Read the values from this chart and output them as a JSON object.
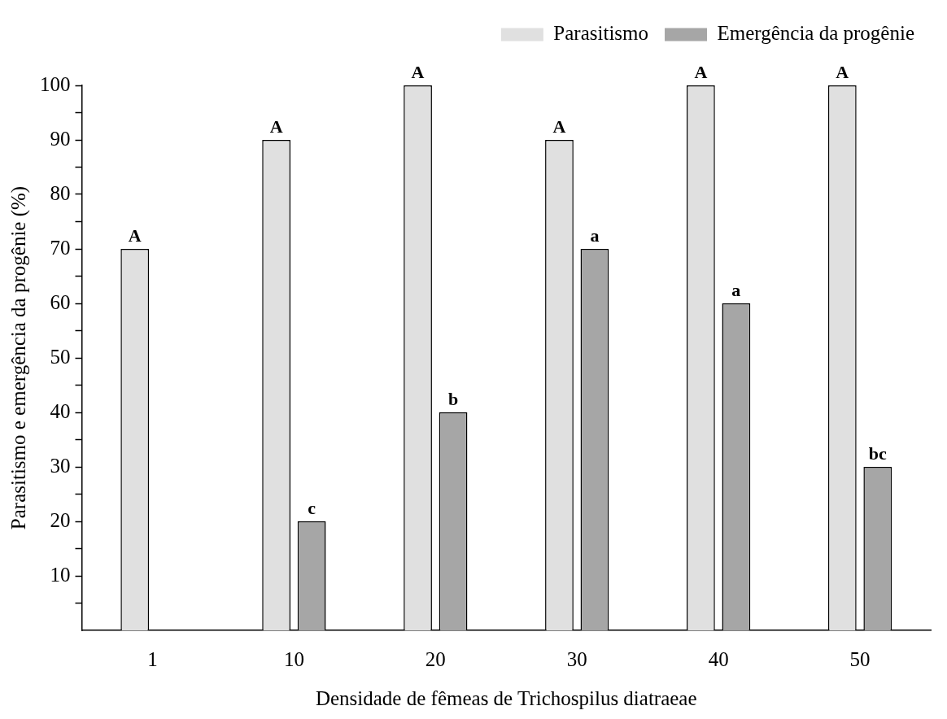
{
  "chart_data": {
    "type": "bar",
    "xlabel": "Densidade de fêmeas de Trichospilus diatraeae",
    "ylabel": "Parasitismo e emergência da progênie (%)",
    "categories": [
      "1",
      "10",
      "20",
      "30",
      "40",
      "50"
    ],
    "series": [
      {
        "name": "Parasitismo",
        "color": "#e0e0e0",
        "values": [
          70,
          90,
          100,
          90,
          100,
          100
        ],
        "value_labels": [
          "A",
          "A",
          "A",
          "A",
          "A",
          "A"
        ]
      },
      {
        "name": "Emergência da progênie",
        "color": "#a6a6a6",
        "values": [
          null,
          20,
          40,
          70,
          60,
          30
        ],
        "value_labels": [
          null,
          "c",
          "b",
          "a",
          "a",
          "bc"
        ]
      }
    ],
    "ylim": [
      0,
      100
    ],
    "yticks": [
      {
        "value": 5,
        "label": null
      },
      10,
      {
        "value": 15,
        "label": null
      },
      20,
      {
        "value": 25,
        "label": null
      },
      30,
      {
        "value": 35,
        "label": null
      },
      40,
      {
        "value": 45,
        "label": null
      },
      50,
      {
        "value": 55,
        "label": null
      },
      60,
      {
        "value": 65,
        "label": null
      },
      70,
      {
        "value": 75,
        "label": null
      },
      80,
      {
        "value": 85,
        "label": null
      },
      90,
      {
        "value": 95,
        "label": null
      },
      100
    ],
    "legend": "top right"
  }
}
